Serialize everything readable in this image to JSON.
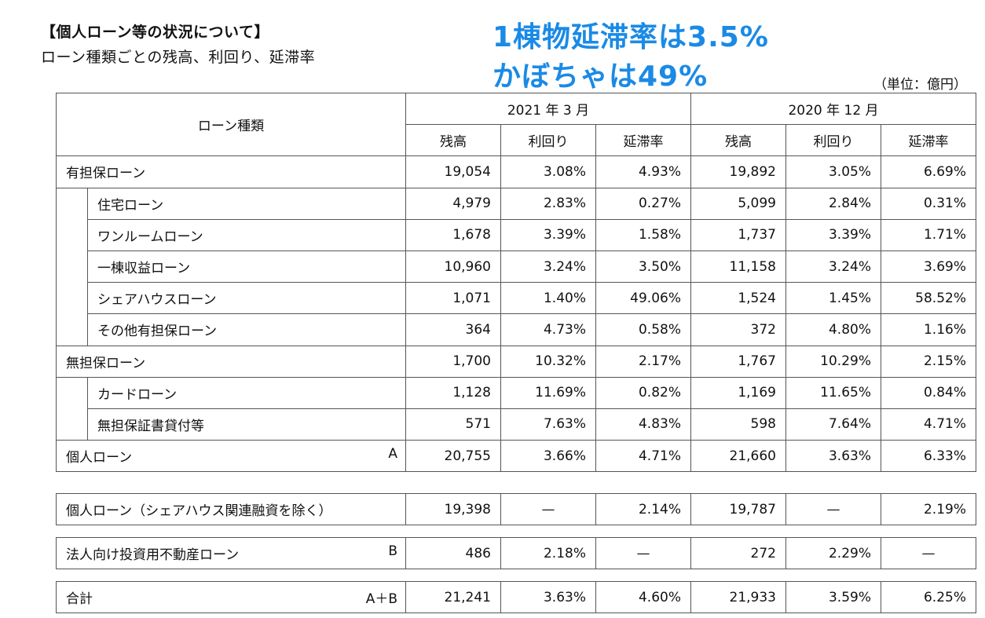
{
  "title": "【個人ローン等の状況について】",
  "subtitle": "ローン種類ごとの残高、利回り、延滞率",
  "annotation": {
    "line1": "1棟物延滞率は3.5%",
    "line2": "かぼちゃは49%"
  },
  "unit": "（単位：億円）",
  "header": {
    "loan_type": "ローン種類",
    "period1": "2021 年 3 月",
    "period2": "2020 年 12 月",
    "balance": "残高",
    "yield": "利回り",
    "delinquency": "延滞率"
  },
  "rows": {
    "secured": {
      "label": "有担保ローン",
      "v": [
        "19,054",
        "3.08%",
        "4.93%",
        "19,892",
        "3.05%",
        "6.69%"
      ]
    },
    "housing": {
      "label": "住宅ローン",
      "v": [
        "4,979",
        "2.83%",
        "0.27%",
        "5,099",
        "2.84%",
        "0.31%"
      ]
    },
    "oneroom": {
      "label": "ワンルームローン",
      "v": [
        "1,678",
        "3.39%",
        "1.58%",
        "1,737",
        "3.39%",
        "1.71%"
      ]
    },
    "building": {
      "label": "一棟収益ローン",
      "v": [
        "10,960",
        "3.24%",
        "3.50%",
        "11,158",
        "3.24%",
        "3.69%"
      ]
    },
    "sharehouse": {
      "label": "シェアハウスローン",
      "v": [
        "1,071",
        "1.40%",
        "49.06%",
        "1,524",
        "1.45%",
        "58.52%"
      ]
    },
    "othersecured": {
      "label": "その他有担保ローン",
      "v": [
        "364",
        "4.73%",
        "0.58%",
        "372",
        "4.80%",
        "1.16%"
      ]
    },
    "unsecured": {
      "label": "無担保ローン",
      "v": [
        "1,700",
        "10.32%",
        "2.17%",
        "1,767",
        "10.29%",
        "2.15%"
      ]
    },
    "card": {
      "label": "カードローン",
      "v": [
        "1,128",
        "11.69%",
        "0.82%",
        "1,169",
        "11.65%",
        "0.84%"
      ]
    },
    "certificate": {
      "label": "無担保証書貸付等",
      "v": [
        "571",
        "7.63%",
        "4.83%",
        "598",
        "7.64%",
        "4.71%"
      ]
    },
    "personal": {
      "label": "個人ローン",
      "mark": "A",
      "v": [
        "20,755",
        "3.66%",
        "4.71%",
        "21,660",
        "3.63%",
        "6.33%"
      ]
    },
    "personal_ex": {
      "label": "個人ローン（シェアハウス関連融資を除く）",
      "v": [
        "19,398",
        "—",
        "2.14%",
        "19,787",
        "—",
        "2.19%"
      ]
    },
    "corporate": {
      "label": "法人向け投資用不動産ローン",
      "mark": "B",
      "v": [
        "486",
        "2.18%",
        "—",
        "272",
        "2.29%",
        "—"
      ]
    },
    "total": {
      "label": "合計",
      "mark": "A＋B",
      "v": [
        "21,241",
        "3.63%",
        "4.60%",
        "21,933",
        "3.59%",
        "6.25%"
      ]
    }
  }
}
